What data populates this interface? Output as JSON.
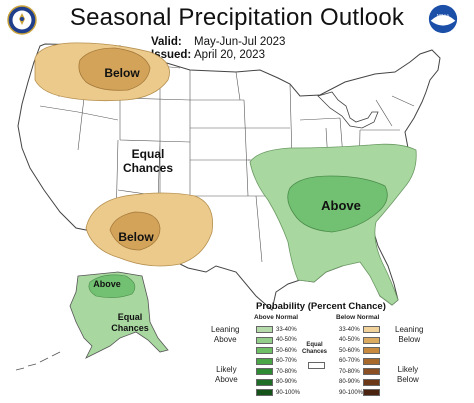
{
  "header": {
    "title": "Seasonal Precipitation Outlook",
    "valid_label": "Valid:",
    "valid_value": "May-Jun-Jul 2023",
    "issued_label": "Issued:",
    "issued_value": "April 20, 2023"
  },
  "logos": {
    "left": "doc-seal-icon",
    "right": "noaa-logo-icon",
    "right_text": "NOAA"
  },
  "map_labels": {
    "northwest": "Below",
    "southwest": "Below",
    "southeast": "Above",
    "alaska": "Above",
    "equal_conus_1": "Equal",
    "equal_conus_2": "Chances",
    "equal_alaska_1": "Equal",
    "equal_alaska_2": "Chances"
  },
  "colors": {
    "land": "#ffffff",
    "border": "#444444",
    "below_light": "#ecca8c",
    "below_mid": "#d3a35a",
    "above_light": "#a8d7a0",
    "above_mid": "#72c071"
  },
  "legend": {
    "title": "Probability (Percent Chance)",
    "above_header": "Above Normal",
    "below_header": "Below Normal",
    "equal_label_1": "Equal",
    "equal_label_2": "Chances",
    "leaning_above": [
      "Leaning",
      "Above"
    ],
    "likely_above": [
      "Likely",
      "Above"
    ],
    "leaning_below": [
      "Leaning",
      "Below"
    ],
    "likely_below": [
      "Likely",
      "Below"
    ],
    "above_bins": [
      {
        "label": "33-40%",
        "color": "#b4dba9"
      },
      {
        "label": "40-50%",
        "color": "#93cf8a"
      },
      {
        "label": "50-60%",
        "color": "#6fbf66"
      },
      {
        "label": "60-70%",
        "color": "#4aa646"
      },
      {
        "label": "70-80%",
        "color": "#2e8b34"
      },
      {
        "label": "80-90%",
        "color": "#1f6e27"
      },
      {
        "label": "90-100%",
        "color": "#145219"
      }
    ],
    "below_bins": [
      {
        "label": "33-40%",
        "color": "#f1d29a"
      },
      {
        "label": "40-50%",
        "color": "#dcab62"
      },
      {
        "label": "50-60%",
        "color": "#c78a3e"
      },
      {
        "label": "60-70%",
        "color": "#a86a2c"
      },
      {
        "label": "70-80%",
        "color": "#8a4f22"
      },
      {
        "label": "80-90%",
        "color": "#6b3818"
      },
      {
        "label": "90-100%",
        "color": "#4a2410"
      }
    ]
  }
}
